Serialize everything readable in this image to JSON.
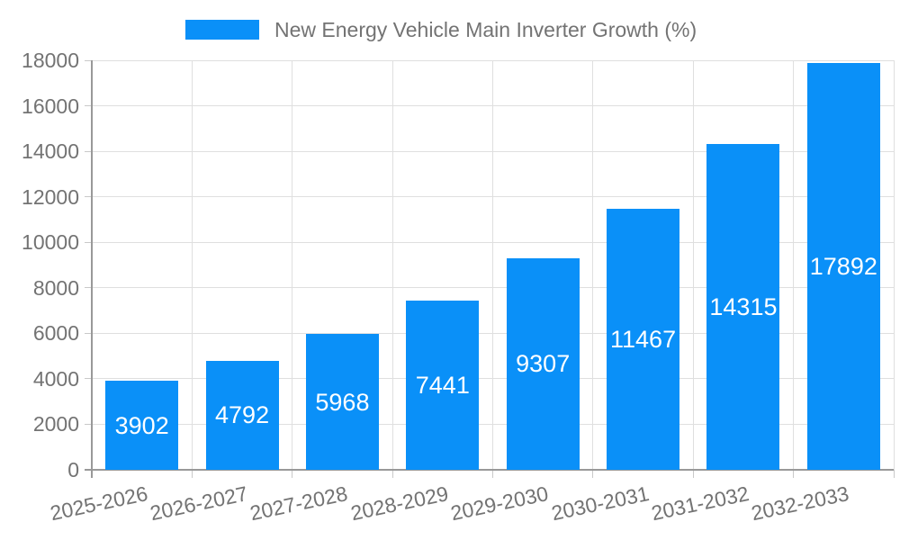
{
  "legend": {
    "label": "New Energy Vehicle Main Inverter Growth (%)"
  },
  "colors": {
    "bar": "#0a90f8",
    "axis_text": "#737373",
    "grid_line": "#dfdfdf",
    "axis_line": "#999999",
    "tick_line": "#c9c9c9",
    "value_label": "#ffffff",
    "background": "#ffffff"
  },
  "chart_data": {
    "type": "bar",
    "title": "New Energy Vehicle Main Inverter Growth (%)",
    "categories": [
      "2025-2026",
      "2026-2027",
      "2027-2028",
      "2028-2029",
      "2029-2030",
      "2030-2031",
      "2031-2032",
      "2032-2033"
    ],
    "values": [
      3902,
      4792,
      5968,
      7441,
      9307,
      11467,
      14315,
      17892
    ],
    "series": [
      {
        "name": "New Energy Vehicle Main Inverter Growth (%)",
        "values": [
          3902,
          4792,
          5968,
          7441,
          9307,
          11467,
          14315,
          17892
        ]
      }
    ],
    "xlabel": "",
    "ylabel": "",
    "ylim": [
      0,
      18000
    ],
    "ytick_step": 2000,
    "yticks": [
      0,
      2000,
      4000,
      6000,
      8000,
      10000,
      12000,
      14000,
      16000,
      18000
    ],
    "grid": true,
    "grid_horizontal": true,
    "grid_vertical": true,
    "legend_position": "top-center",
    "value_labels": "inside-center",
    "x_label_rotation_deg": -12
  }
}
